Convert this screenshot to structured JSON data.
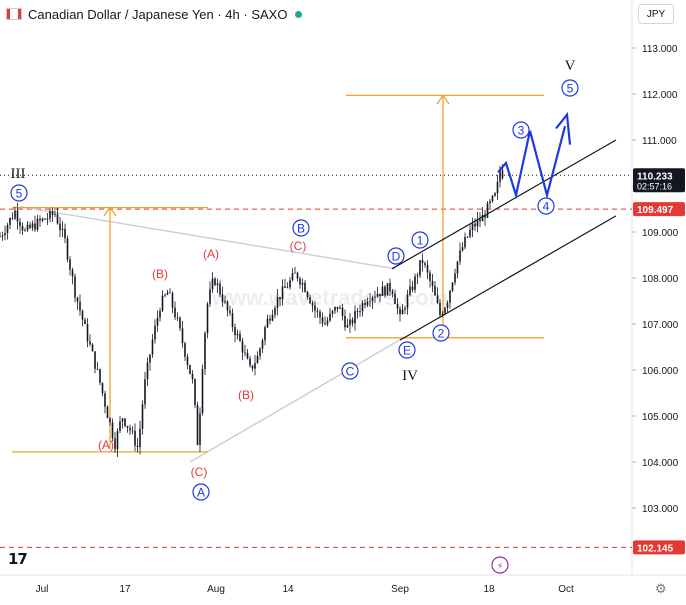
{
  "header": {
    "title": "Canadian Dollar / Japanese Yen · 4h · SAXO"
  },
  "currency_selector": "JPY",
  "watermark": "www.wavetraders.com",
  "chart_data": {
    "type": "candlestick",
    "y_axis": {
      "ticks": [
        "113.000",
        "112.000",
        "111.000",
        "110.000",
        "109.000",
        "108.000",
        "107.000",
        "106.000",
        "105.000",
        "104.000",
        "103.000"
      ],
      "ylim": [
        102.0,
        113.5
      ]
    },
    "x_axis": {
      "ticks": [
        "Jul",
        "17",
        "Aug",
        "14",
        "Sep",
        "18",
        "Oct"
      ]
    },
    "price_tags": [
      {
        "value": "110.233",
        "sub": "02:57:16",
        "color": "#131722"
      },
      {
        "value": "109.497",
        "color": "#e53935"
      },
      {
        "value": "102.145",
        "color": "#e53935"
      }
    ],
    "colors": {
      "candles": "#131722",
      "waves_black": "#131722",
      "waves_red": "#e53935",
      "waves_blue": "#1e3adf",
      "fib_lines": "#f0a030",
      "triangle": "#c8cdd8",
      "projection": "#1e3adf"
    },
    "wave_labels": {
      "black": [
        "III",
        "IV",
        "V"
      ],
      "red": [
        "(A)",
        "(B)",
        "(C)",
        "(A)",
        "(B)",
        "(C)"
      ],
      "blue": [
        "5",
        "B",
        "D",
        "1",
        "2",
        "E",
        "C",
        "A",
        "3",
        "4",
        "5"
      ]
    }
  }
}
